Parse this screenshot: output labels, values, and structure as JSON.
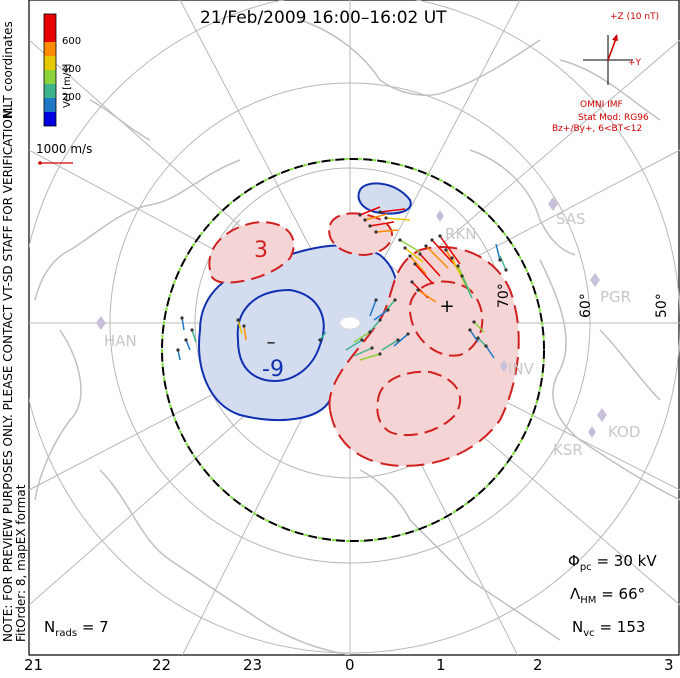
{
  "title": "21/Feb/2009  16:00–16:02 UT",
  "coordinates_note": "MLT coordinates",
  "preview_note": "NOTE: FOR PREVIEW PURPOSES ONLY. PLEASE CONTACT VT-SD STAFF FOR VERIFICATION.",
  "fit_note": "FitOrder: 8, mapEX format",
  "velocity_scale": {
    "label": "Vel [m/s]",
    "ticks": [
      "600",
      "400",
      "200"
    ],
    "colors": [
      "#0000e0",
      "#1e78c8",
      "#3cb48c",
      "#8cd23c",
      "#e6c800",
      "#ff8c00",
      "#e60000"
    ]
  },
  "reference_vector": {
    "label": "1000 m/s"
  },
  "imf": {
    "z_label": "+Z (10 nT)",
    "y_label": "+Y",
    "source": "OMNI IMF",
    "model": "Stat Mod: RG96",
    "condition": "Bz+/By+, 6<BT<12"
  },
  "mlt_axis": [
    "21",
    "22",
    "23",
    "0",
    "1",
    "2",
    "3"
  ],
  "latitude_labels": [
    "60°",
    "50°",
    "70°"
  ],
  "stations": [
    "SAS",
    "PGR",
    "KOD",
    "KSR",
    "INV",
    "RKN",
    "HAN"
  ],
  "contour_labels": [
    "3",
    "-9"
  ],
  "potential_markers": [
    "+",
    "–"
  ],
  "stats": {
    "phi_pc_symbol": "Φ",
    "phi_pc_sub": "pc",
    "phi_pc_value": "= 30 kV",
    "lambda_hm_symbol": "Λ",
    "lambda_hm_sub": "HM",
    "lambda_hm_value": "= 66°",
    "n_vc_symbol": "N",
    "n_vc_sub": "vc",
    "n_vc_value": "= 153",
    "n_rads_symbol": "N",
    "n_rads_sub": "rads",
    "n_rads_value": "= 7"
  },
  "colors": {
    "positive_cell_fill": "#f4d4d4",
    "negative_cell_fill": "#d4dcf0",
    "positive_contour": "#d22020",
    "negative_contour": "#1030b0",
    "coastline": "#c0c0c0",
    "grid": "#b8b8b8",
    "hmb": "#80e040"
  }
}
